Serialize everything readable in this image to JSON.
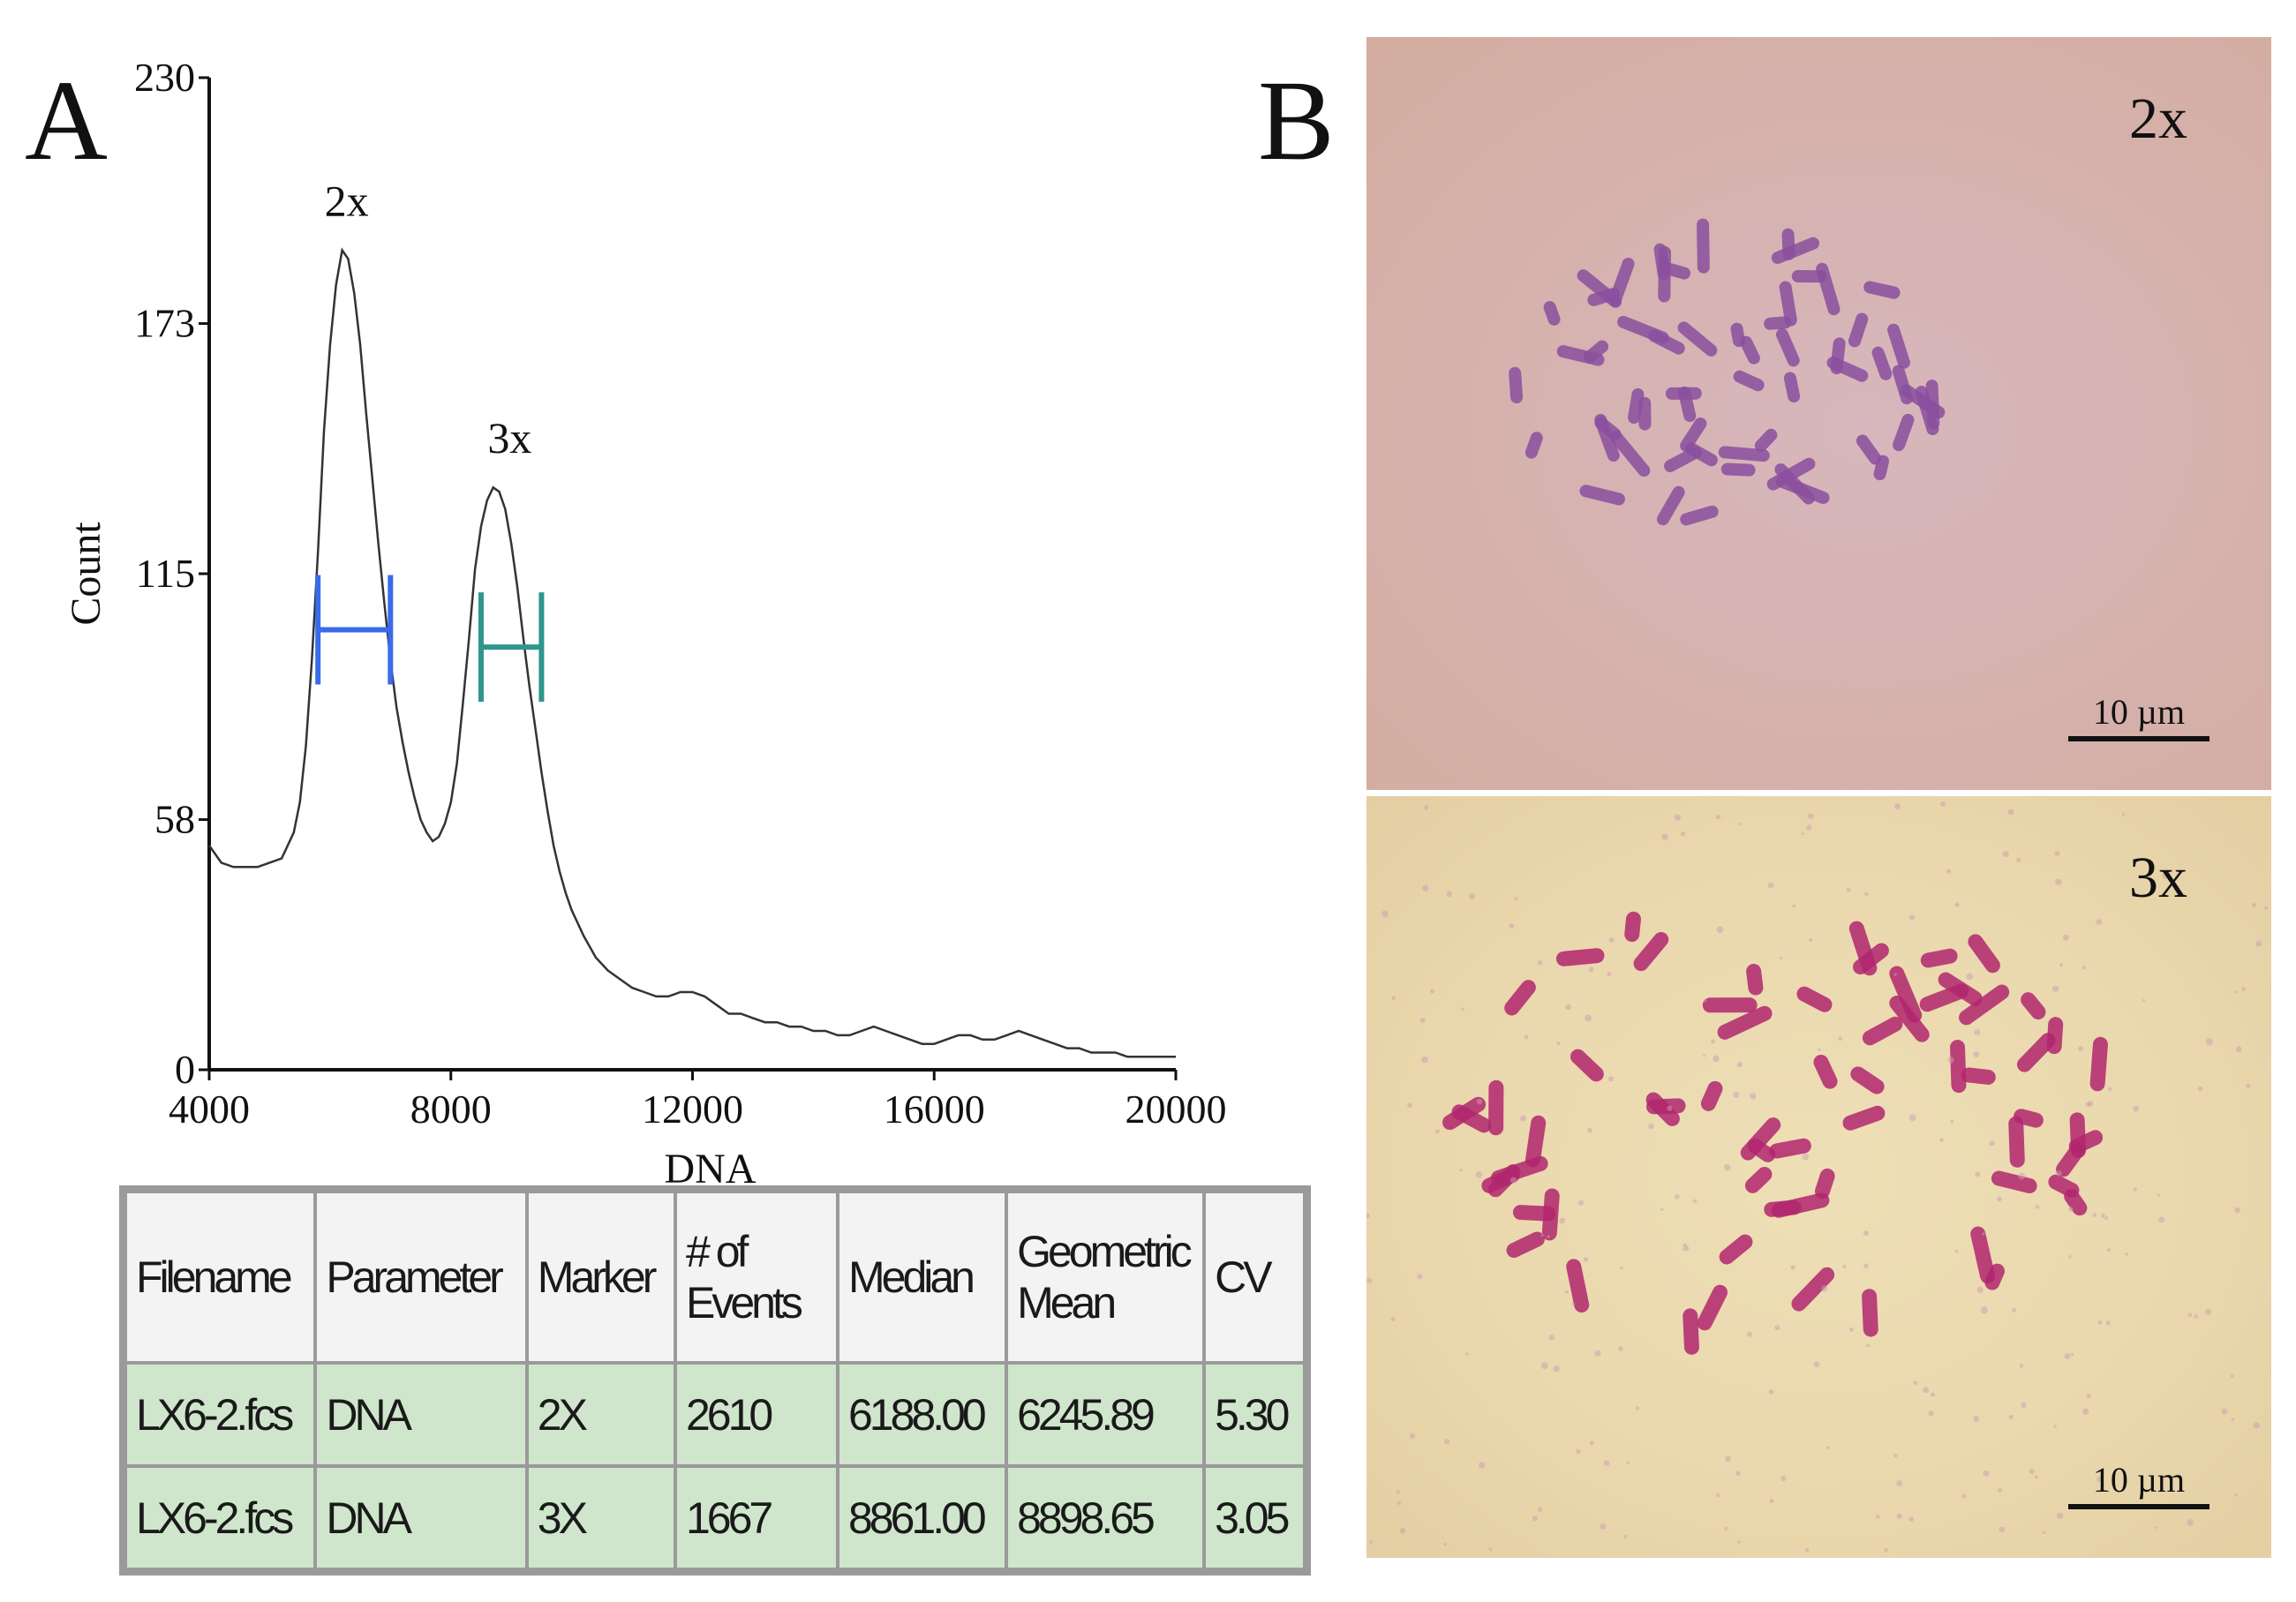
{
  "panel_a_letter": "A",
  "panel_b_letter": "B",
  "chart_data": {
    "type": "line",
    "xlabel": "DNA",
    "ylabel": "Count",
    "xlim": [
      4000,
      20000
    ],
    "ylim": [
      0,
      230
    ],
    "x_ticks": [
      4000,
      8000,
      12000,
      16000,
      20000
    ],
    "y_ticks": [
      0,
      58,
      115,
      173,
      230
    ],
    "x_tick_labels": [
      "4000",
      "8000",
      "12000",
      "16000",
      "20000"
    ],
    "y_tick_labels": [
      "0",
      "58",
      "115",
      "173",
      "230"
    ],
    "series": [
      {
        "x": [
          4000,
          4200,
          4400,
          4600,
          4800,
          5000,
          5200,
          5400,
          5500,
          5600,
          5700,
          5800,
          5900,
          6000,
          6100,
          6200,
          6300,
          6400,
          6500,
          6600,
          6700,
          6800,
          6900,
          7000,
          7100,
          7200,
          7300,
          7400,
          7500,
          7600,
          7700,
          7800,
          7900,
          8000,
          8100,
          8200,
          8300,
          8400,
          8500,
          8600,
          8700,
          8800,
          8900,
          9000,
          9100,
          9200,
          9300,
          9400,
          9500,
          9600,
          9700,
          9800,
          9900,
          10000,
          10200,
          10400,
          10600,
          10800,
          11000,
          11200,
          11400,
          11600,
          11800,
          12000,
          12200,
          12400,
          12600,
          12800,
          13000,
          13200,
          13400,
          13600,
          13800,
          14000,
          14200,
          14400,
          14600,
          14800,
          15000,
          15200,
          15400,
          15600,
          15800,
          16000,
          16200,
          16400,
          16600,
          16800,
          17000,
          17200,
          17400,
          17600,
          17800,
          18000,
          18200,
          18400,
          18600,
          18800,
          19000,
          19200,
          19400,
          19600,
          19800,
          20000
        ],
        "y": [
          52,
          48,
          47,
          47,
          47,
          48,
          49,
          55,
          62,
          75,
          95,
          120,
          148,
          168,
          182,
          190,
          188,
          180,
          168,
          152,
          137,
          122,
          108,
          95,
          84,
          76,
          69,
          63,
          58,
          55,
          53,
          54,
          57,
          62,
          71,
          85,
          100,
          116,
          126,
          132,
          135,
          134,
          130,
          122,
          112,
          100,
          89,
          79,
          69,
          60,
          52,
          46,
          41,
          37,
          31,
          26,
          23,
          21,
          19,
          18,
          17,
          17,
          18,
          18,
          17,
          15,
          13,
          13,
          12,
          11,
          11,
          10,
          10,
          9,
          9,
          8,
          8,
          9,
          10,
          9,
          8,
          7,
          6,
          6,
          7,
          8,
          8,
          7,
          7,
          8,
          9,
          8,
          7,
          6,
          5,
          5,
          4,
          4,
          4,
          3,
          3,
          3,
          3,
          3
        ]
      }
    ],
    "peak_labels": [
      {
        "text": "2x",
        "x": 6200,
        "y": 198
      },
      {
        "text": "3x",
        "x": 8900,
        "y": 143
      }
    ],
    "markers": [
      {
        "name": "2X",
        "x_start": 5800,
        "x_end": 7000,
        "y": 102,
        "color": "#3a6be8"
      },
      {
        "name": "3X",
        "x_start": 8500,
        "x_end": 9500,
        "y": 98,
        "color": "#2f968e"
      }
    ]
  },
  "table": {
    "headers": [
      "Filename",
      "Parameter",
      "Marker",
      "# of Events",
      "Median",
      "Geometric Mean",
      "CV"
    ],
    "rows": [
      [
        "LX6-2.fcs",
        "DNA",
        "2X",
        "2610",
        "6188.00",
        "6245.89",
        "5.30"
      ],
      [
        "LX6-2.fcs",
        "DNA",
        "3X",
        "1667",
        "8861.00",
        "8898.65",
        "3.05"
      ]
    ]
  },
  "micrographs": {
    "top": {
      "label": "2x",
      "scale_text": "10 µm"
    },
    "bottom": {
      "label": "3x",
      "scale_text": "10 µm"
    }
  },
  "colors": {
    "curve": "#333333",
    "table_row_bg": "#cfe6cc",
    "table_header_bg": "#f3f3f3",
    "chromosome_2x": "#8a4f9e",
    "chromosome_3x": "#b2266f"
  }
}
